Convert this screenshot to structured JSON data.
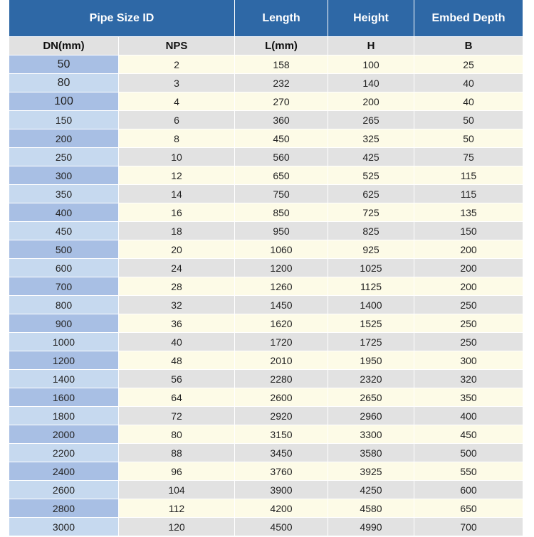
{
  "table": {
    "header": [
      "Pipe Size ID",
      "Length",
      "Height",
      "Embed Depth"
    ],
    "subheader": [
      "DN(mm)",
      "NPS",
      "L(mm)",
      "H",
      "B"
    ],
    "rows": [
      [
        50,
        2,
        158,
        100,
        25
      ],
      [
        80,
        3,
        232,
        140,
        40
      ],
      [
        100,
        4,
        270,
        200,
        40
      ],
      [
        150,
        6,
        360,
        265,
        50
      ],
      [
        200,
        8,
        450,
        325,
        50
      ],
      [
        250,
        10,
        560,
        425,
        75
      ],
      [
        300,
        12,
        650,
        525,
        115
      ],
      [
        350,
        14,
        750,
        625,
        115
      ],
      [
        400,
        16,
        850,
        725,
        135
      ],
      [
        450,
        18,
        950,
        825,
        150
      ],
      [
        500,
        20,
        1060,
        925,
        200
      ],
      [
        600,
        24,
        1200,
        1025,
        200
      ],
      [
        700,
        28,
        1260,
        1125,
        200
      ],
      [
        800,
        32,
        1450,
        1400,
        250
      ],
      [
        900,
        36,
        1620,
        1525,
        250
      ],
      [
        1000,
        40,
        1720,
        1725,
        250
      ],
      [
        1200,
        48,
        2010,
        1950,
        300
      ],
      [
        1400,
        56,
        2280,
        2320,
        320
      ],
      [
        1600,
        64,
        2600,
        2650,
        350
      ],
      [
        1800,
        72,
        2920,
        2960,
        400
      ],
      [
        2000,
        80,
        3150,
        3300,
        450
      ],
      [
        2200,
        88,
        3450,
        3580,
        500
      ],
      [
        2400,
        96,
        3760,
        3925,
        550
      ],
      [
        2600,
        104,
        3900,
        4250,
        600
      ],
      [
        2800,
        112,
        4200,
        4580,
        650
      ],
      [
        3000,
        120,
        4500,
        4990,
        700
      ]
    ]
  }
}
